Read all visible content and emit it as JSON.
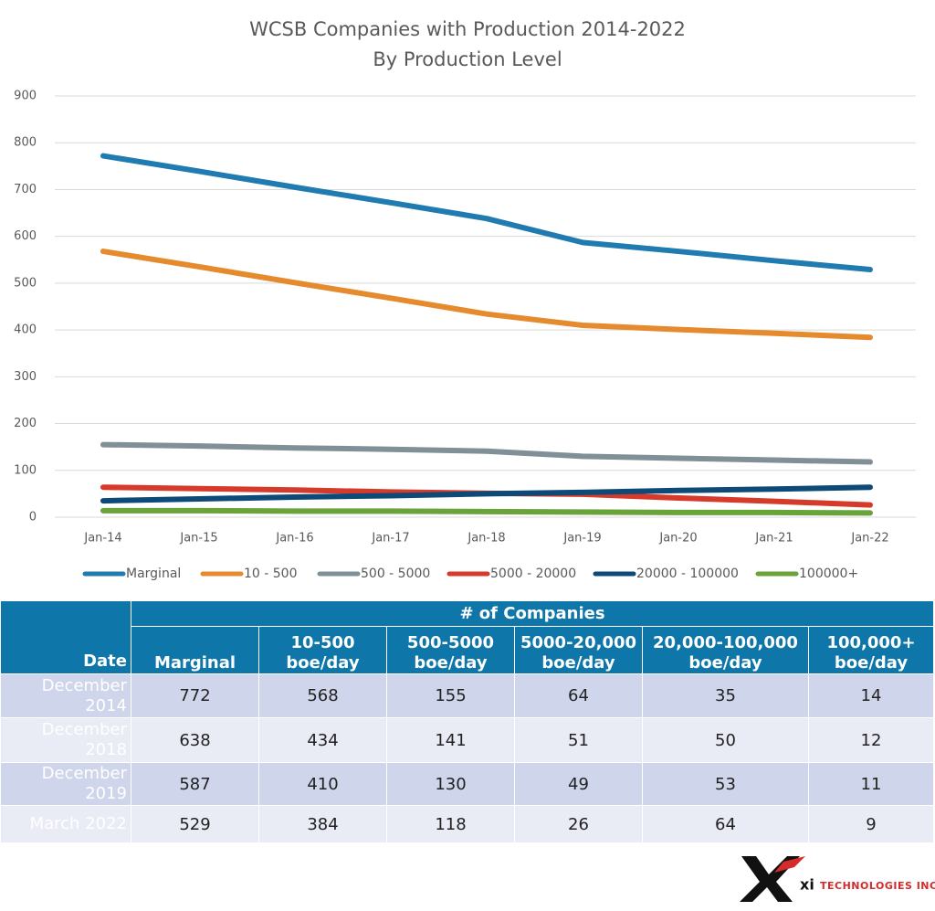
{
  "chart_data": {
    "type": "line",
    "title": "WCSB Companies with Production 2014-2022",
    "subtitle": "By Production Level",
    "categories": [
      "Jan-14",
      "Jan-15",
      "Jan-16",
      "Jan-17",
      "Jan-18",
      "Jan-19",
      "Jan-20",
      "Jan-21",
      "Jan-22"
    ],
    "series": [
      {
        "name": "Marginal",
        "color": "#1f7bb0",
        "values": [
          772,
          739,
          705,
          672,
          638,
          587,
          568,
          548,
          529
        ]
      },
      {
        "name": "10 - 500",
        "color": "#e68a2e",
        "values": [
          568,
          535,
          501,
          468,
          434,
          410,
          401,
          393,
          384
        ]
      },
      {
        "name": "500 - 5000",
        "color": "#7f9096",
        "values": [
          155,
          152,
          148,
          145,
          141,
          130,
          126,
          122,
          118
        ]
      },
      {
        "name": "5000 - 20000",
        "color": "#d63a2a",
        "values": [
          64,
          61,
          58,
          54,
          51,
          49,
          41,
          34,
          26
        ]
      },
      {
        "name": "20000 - 100000",
        "color": "#0d4a78",
        "values": [
          35,
          39,
          43,
          46,
          50,
          53,
          57,
          60,
          64
        ]
      },
      {
        "name": "100000+",
        "color": "#6aa33a",
        "values": [
          14,
          14,
          13,
          13,
          12,
          11,
          10,
          10,
          9
        ]
      }
    ],
    "ylim": [
      0,
      900
    ],
    "yticks": [
      0,
      100,
      200,
      300,
      400,
      500,
      600,
      700,
      800,
      900
    ],
    "grid": true,
    "legend": "bottom"
  },
  "table": {
    "group_header": "# of Companies",
    "columns": [
      "Date",
      "Marginal",
      "10-500 boe/day",
      "500-5000 boe/day",
      "5000-20,000 boe/day",
      "20,000-100,000 boe/day",
      "100,000+ boe/day"
    ],
    "rows": [
      [
        "December 2014",
        "772",
        "568",
        "155",
        "64",
        "35",
        "14"
      ],
      [
        "December 2018",
        "638",
        "434",
        "141",
        "51",
        "50",
        "12"
      ],
      [
        "December 2019",
        "587",
        "410",
        "130",
        "49",
        "53",
        "11"
      ],
      [
        "March 2022",
        "529",
        "384",
        "118",
        "26",
        "64",
        "9"
      ]
    ]
  },
  "logo": {
    "mark": "xi",
    "text": "TECHNOLOGIES INC."
  }
}
